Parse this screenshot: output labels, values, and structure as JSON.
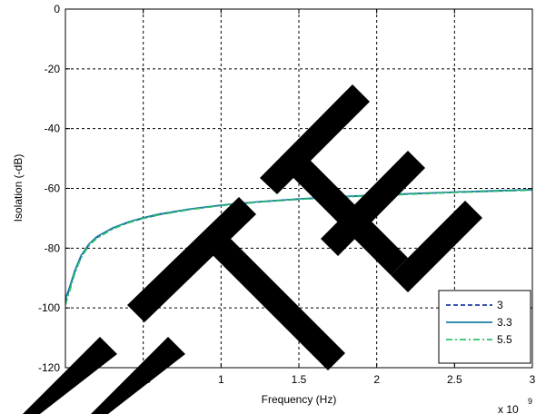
{
  "chart_data": {
    "type": "line",
    "title": "",
    "xlabel": "Frequency (Hz)",
    "ylabel": "Isolation (-dB)",
    "x_exponent_label": "x 10",
    "x_exponent_power": "9",
    "xlim": [
      0,
      3
    ],
    "ylim": [
      -120,
      0
    ],
    "xticks": [
      0,
      0.5,
      1,
      1.5,
      2,
      2.5,
      3
    ],
    "xtick_labels": [
      "0",
      "0.5",
      "1",
      "1.5",
      "2",
      "2.5",
      "3"
    ],
    "yticks": [
      0,
      -20,
      -40,
      -60,
      -80,
      -100,
      -120
    ],
    "ytick_labels": [
      "0",
      "-20",
      "-40",
      "-60",
      "-80",
      "-100",
      "-120"
    ],
    "grid": true,
    "legend_position": "bottom-right",
    "series": [
      {
        "name": "3",
        "color": "#1f3fa0",
        "style": "dashed",
        "x": [
          0,
          0.03,
          0.06,
          0.1,
          0.15,
          0.2,
          0.3,
          0.4,
          0.5,
          0.6,
          0.8,
          1.0,
          1.25,
          1.5,
          1.75,
          2.0,
          2.25,
          2.5,
          2.75,
          3.0
        ],
        "y": [
          -98,
          -93,
          -88,
          -83,
          -79,
          -76.5,
          -73.5,
          -71.5,
          -70,
          -68.8,
          -67,
          -65.7,
          -64.5,
          -63.6,
          -62.9,
          -62.3,
          -61.8,
          -61.3,
          -60.9,
          -60.5
        ]
      },
      {
        "name": "3.3",
        "color": "#1a7fa0",
        "style": "solid",
        "x": [
          0,
          0.03,
          0.06,
          0.1,
          0.15,
          0.2,
          0.3,
          0.4,
          0.5,
          0.6,
          0.8,
          1.0,
          1.25,
          1.5,
          1.75,
          2.0,
          2.25,
          2.5,
          2.75,
          3.0
        ],
        "y": [
          -97,
          -92.5,
          -87.5,
          -82.5,
          -78.7,
          -76.2,
          -73.3,
          -71.3,
          -69.8,
          -68.6,
          -66.9,
          -65.6,
          -64.4,
          -63.5,
          -62.8,
          -62.2,
          -61.7,
          -61.2,
          -60.8,
          -60.4
        ]
      },
      {
        "name": "5.5",
        "color": "#2ec46a",
        "style": "dashdot",
        "x": [
          0,
          0.03,
          0.06,
          0.1,
          0.15,
          0.2,
          0.3,
          0.4,
          0.5,
          0.6,
          0.8,
          1.0,
          1.25,
          1.5,
          1.75,
          2.0,
          2.25,
          2.5,
          2.75,
          3.0
        ],
        "y": [
          -99,
          -94,
          -88.5,
          -83.3,
          -79.3,
          -76.8,
          -73.7,
          -71.6,
          -70.1,
          -68.9,
          -67.1,
          -65.8,
          -64.6,
          -63.7,
          -63.0,
          -62.4,
          -61.9,
          -61.4,
          -61.0,
          -60.6
        ]
      }
    ]
  },
  "watermark_text": "LTE"
}
